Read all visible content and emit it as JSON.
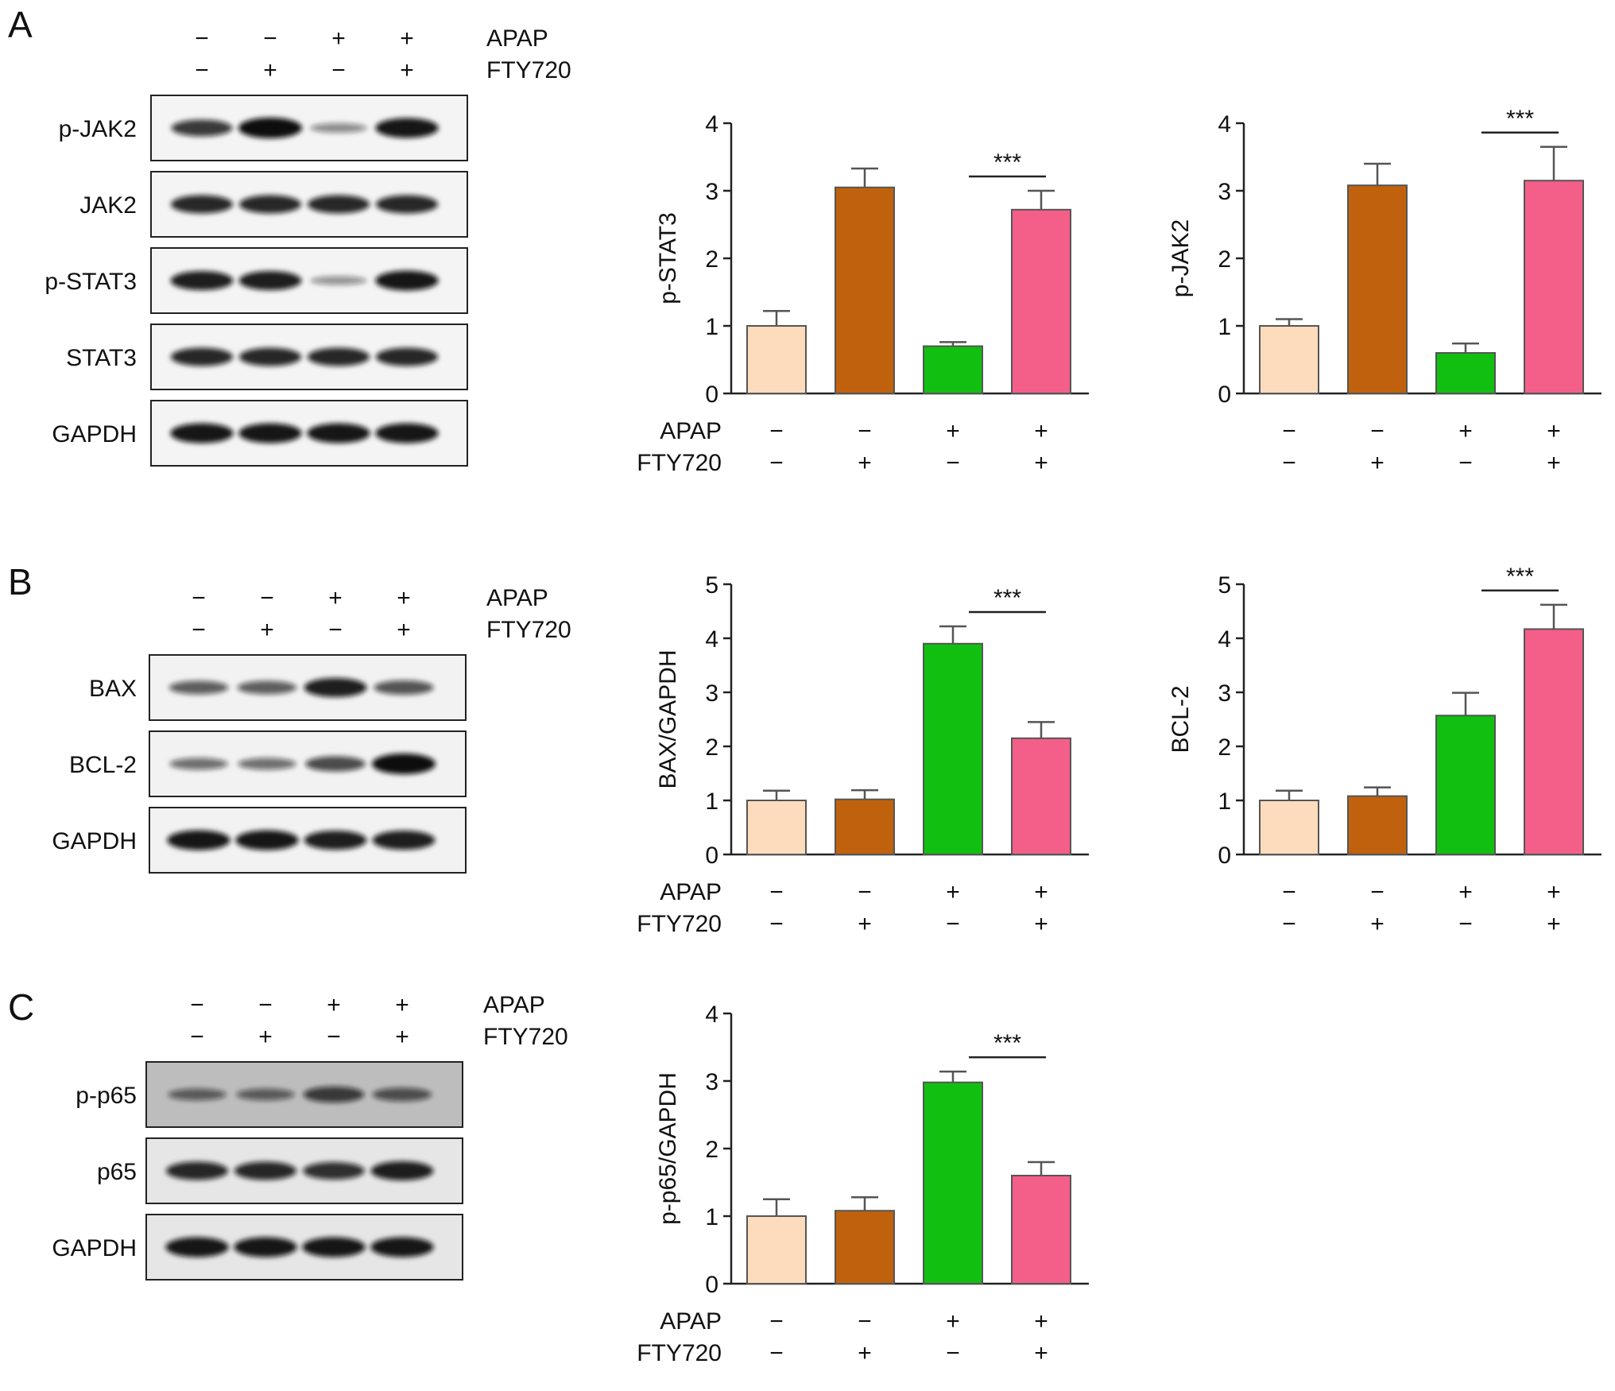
{
  "panels": [
    "A",
    "B",
    "C"
  ],
  "treatments": {
    "row1_label": "APAP",
    "row2_label": "FTY720",
    "apap": [
      "−",
      "−",
      "+",
      "+"
    ],
    "fty720": [
      "−",
      "+",
      "−",
      "+"
    ]
  },
  "bar_colors": [
    "#FCDCBC",
    "#C0620D",
    "#11BF11",
    "#F45F8A"
  ],
  "blots": [
    {
      "panel": "A",
      "proteins": [
        {
          "name": "p-JAK2",
          "band_intensity": [
            0.75,
            1.0,
            0.3,
            0.95
          ]
        },
        {
          "name": "JAK2",
          "band_intensity": [
            0.85,
            0.85,
            0.85,
            0.85
          ]
        },
        {
          "name": "p-STAT3",
          "band_intensity": [
            0.9,
            0.9,
            0.25,
            0.95
          ]
        },
        {
          "name": "STAT3",
          "band_intensity": [
            0.85,
            0.85,
            0.85,
            0.85
          ]
        },
        {
          "name": "GAPDH",
          "band_intensity": [
            0.95,
            0.95,
            0.95,
            0.95
          ]
        }
      ]
    },
    {
      "panel": "B",
      "proteins": [
        {
          "name": "BAX",
          "band_intensity": [
            0.55,
            0.55,
            0.9,
            0.6
          ]
        },
        {
          "name": "BCL-2",
          "band_intensity": [
            0.45,
            0.45,
            0.65,
            1.0
          ]
        },
        {
          "name": "GAPDH",
          "band_intensity": [
            0.95,
            0.95,
            0.9,
            0.9
          ]
        }
      ]
    },
    {
      "panel": "C",
      "proteins": [
        {
          "name": "p-p65",
          "band_intensity": [
            0.45,
            0.45,
            0.7,
            0.55
          ]
        },
        {
          "name": "p65",
          "band_intensity": [
            0.85,
            0.85,
            0.8,
            0.9
          ]
        },
        {
          "name": "GAPDH",
          "band_intensity": [
            0.95,
            0.95,
            0.95,
            0.95
          ]
        }
      ]
    }
  ],
  "chart_data": [
    {
      "type": "bar",
      "panel": "A",
      "ylabel": "p-STAT3",
      "ylim": [
        0,
        4
      ],
      "yticks": [
        0,
        1,
        2,
        3,
        4
      ],
      "values": [
        1.0,
        3.05,
        0.7,
        2.72
      ],
      "errors": [
        0.22,
        0.28,
        0.06,
        0.28
      ],
      "significance": {
        "from": 2,
        "to": 3,
        "label": "***"
      }
    },
    {
      "type": "bar",
      "panel": "A",
      "ylabel": "p-JAK2",
      "ylim": [
        0,
        4
      ],
      "yticks": [
        0,
        1,
        2,
        3,
        4
      ],
      "values": [
        1.0,
        3.08,
        0.6,
        3.15
      ],
      "errors": [
        0.1,
        0.32,
        0.14,
        0.5
      ],
      "significance": {
        "from": 2,
        "to": 3,
        "label": "***"
      }
    },
    {
      "type": "bar",
      "panel": "B",
      "ylabel": "BAX/GAPDH",
      "ylim": [
        0,
        5
      ],
      "yticks": [
        0,
        1,
        2,
        3,
        4,
        5
      ],
      "values": [
        1.0,
        1.02,
        3.9,
        2.15
      ],
      "errors": [
        0.18,
        0.17,
        0.32,
        0.3
      ],
      "significance": {
        "from": 2,
        "to": 3,
        "label": "***"
      }
    },
    {
      "type": "bar",
      "panel": "B",
      "ylabel": "BCL-2",
      "ylim": [
        0,
        5
      ],
      "yticks": [
        0,
        1,
        2,
        3,
        4,
        5
      ],
      "values": [
        1.0,
        1.08,
        2.57,
        4.17
      ],
      "errors": [
        0.18,
        0.16,
        0.42,
        0.45
      ],
      "significance": {
        "from": 2,
        "to": 3,
        "label": "***"
      }
    },
    {
      "type": "bar",
      "panel": "C",
      "ylabel": "p-p65/GAPDH",
      "ylim": [
        0,
        4
      ],
      "yticks": [
        0,
        1,
        2,
        3,
        4
      ],
      "values": [
        1.0,
        1.08,
        2.98,
        1.6
      ],
      "errors": [
        0.25,
        0.2,
        0.16,
        0.2
      ],
      "significance": {
        "from": 2,
        "to": 3,
        "label": "***"
      }
    }
  ]
}
